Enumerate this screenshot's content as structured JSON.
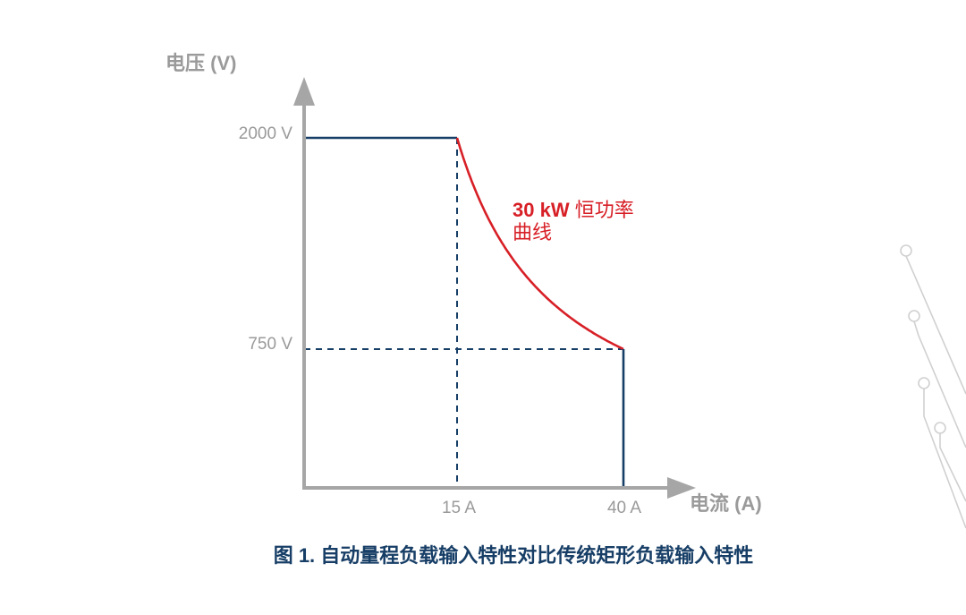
{
  "colors": {
    "axis": "#a6a6a6",
    "rect_region": "#173e66",
    "power_curve": "#d71f26",
    "labels": "#9a9a9a",
    "caption": "#173e66",
    "decor": "#d0d0d0"
  },
  "chart_data": {
    "type": "line",
    "xlabel": "电流 (A)",
    "ylabel": "电压 (V)",
    "x_ticks": [
      "15 A",
      "40 A"
    ],
    "y_ticks": [
      "2000 V",
      "750 V"
    ],
    "x_tick_values": [
      15,
      40
    ],
    "y_tick_values": [
      2000,
      750
    ],
    "xlim": [
      0,
      50
    ],
    "ylim": [
      0,
      2500
    ],
    "grid": false,
    "series": [
      {
        "name": "",
        "style": "solid",
        "points": [
          [
            0,
            2000
          ],
          [
            15,
            2000
          ]
        ]
      },
      {
        "name": "30 kW 恒功率曲线",
        "style": "solid",
        "function": "V = 30000 / I",
        "points": [
          [
            15,
            2000
          ],
          [
            20,
            1500
          ],
          [
            25,
            1200
          ],
          [
            30,
            1000
          ],
          [
            35,
            857
          ],
          [
            40,
            750
          ]
        ]
      },
      {
        "name": "",
        "style": "solid",
        "points": [
          [
            40,
            750
          ],
          [
            40,
            0
          ]
        ]
      }
    ],
    "guides": [
      {
        "style": "dashed",
        "points": [
          [
            15,
            2000
          ],
          [
            15,
            0
          ]
        ]
      },
      {
        "style": "dashed",
        "points": [
          [
            0,
            750
          ],
          [
            40,
            750
          ]
        ]
      }
    ],
    "annotation": {
      "line1_bold": "30 kW",
      "line1_rest": " 恒功率",
      "line2": "曲线"
    },
    "caption": "图 1. 自动量程负载输入特性对比传统矩形负载输入特性"
  }
}
